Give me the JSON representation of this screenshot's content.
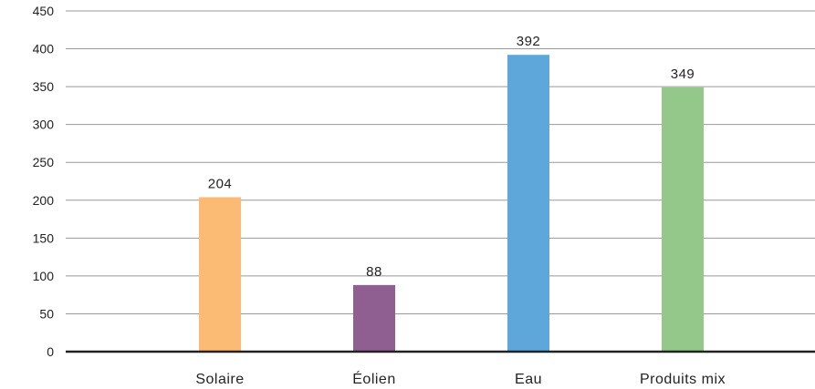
{
  "chart_data": {
    "type": "bar",
    "categories": [
      "Solaire",
      "Éolien",
      "Eau",
      "Produits mix"
    ],
    "values": [
      204,
      88,
      392,
      349
    ],
    "data_labels": [
      "204",
      "88",
      "392",
      "349"
    ],
    "colors": [
      "#fbbb74",
      "#8e5f90",
      "#5ea7da",
      "#93c88a"
    ],
    "ylim": [
      0,
      450
    ],
    "yticks": [
      0,
      50,
      100,
      150,
      200,
      250,
      300,
      350,
      400,
      450
    ],
    "ytick_labels": [
      "0",
      "50",
      "100",
      "150",
      "200",
      "250",
      "300",
      "350",
      "400",
      "450"
    ],
    "grid": true,
    "gridline_color": "#999999",
    "axis_color": "#222222",
    "title": "",
    "xlabel": "",
    "ylabel": ""
  }
}
